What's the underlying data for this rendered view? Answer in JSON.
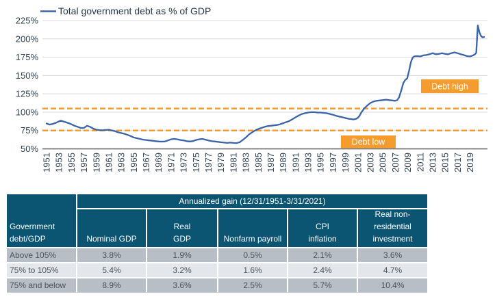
{
  "chart_data": {
    "type": "line",
    "legend": "Total government debt as % of GDP",
    "legend_position": "top-left",
    "grid": true,
    "colors": {
      "line": "#3A63A8",
      "accent_orange": "#F59C2E",
      "axis_text": "#2E4050",
      "gridline": "#D9D9D9",
      "axis_line": "#767676",
      "legend_text": "#253746"
    },
    "y_axis": {
      "unit": "%",
      "range": [
        50,
        225
      ],
      "tick_values": [
        225,
        200,
        175,
        150,
        125,
        100,
        75,
        50
      ],
      "tick_labels": [
        "225%",
        "200%",
        "175%",
        "150%",
        "125%",
        "100%",
        "75%",
        "50%"
      ]
    },
    "x_axis": {
      "range": [
        1951,
        2021.25
      ],
      "tick_labels": [
        "1951",
        "1953",
        "1955",
        "1957",
        "1959",
        "1961",
        "1963",
        "1965",
        "1967",
        "1969",
        "1971",
        "1973",
        "1975",
        "1977",
        "1979",
        "1981",
        "1983",
        "1985",
        "1987",
        "1989",
        "1991",
        "1993",
        "1995",
        "1997",
        "1999",
        "2001",
        "2003",
        "2005",
        "2007",
        "2009",
        "2011",
        "2013",
        "2015",
        "2017",
        "2019"
      ]
    },
    "reference_lines": [
      {
        "label": "Debt high",
        "value": 105,
        "color": "#F59C2E",
        "style": "dashed"
      },
      {
        "label": "Debt low",
        "value": 75,
        "color": "#F59C2E",
        "style": "dashed"
      }
    ],
    "series": [
      {
        "name": "Total government debt as % of GDP",
        "color": "#3A63A8",
        "points": [
          [
            1951,
            84.5
          ],
          [
            1951.5,
            83
          ],
          [
            1952,
            84
          ],
          [
            1952.5,
            85.5
          ],
          [
            1953,
            87.5
          ],
          [
            1953.3,
            88.5
          ],
          [
            1954,
            86.5
          ],
          [
            1954.7,
            84.5
          ],
          [
            1955.5,
            81.5
          ],
          [
            1956.5,
            78.5
          ],
          [
            1957,
            78.5
          ],
          [
            1957.5,
            81.5
          ],
          [
            1958,
            80
          ],
          [
            1958.5,
            77.5
          ],
          [
            1959,
            76
          ],
          [
            1959.5,
            75.5
          ],
          [
            1960,
            75.3
          ],
          [
            1960.5,
            75.8
          ],
          [
            1961,
            76
          ],
          [
            1961.5,
            75
          ],
          [
            1962,
            74
          ],
          [
            1962.5,
            72.5
          ],
          [
            1963,
            71.5
          ],
          [
            1963.5,
            70.5
          ],
          [
            1964,
            69
          ],
          [
            1964.5,
            67.5
          ],
          [
            1965,
            65.5
          ],
          [
            1965.5,
            64.5
          ],
          [
            1966,
            63.5
          ],
          [
            1966.5,
            62.5
          ],
          [
            1967,
            62
          ],
          [
            1967.5,
            61.5
          ],
          [
            1968,
            61
          ],
          [
            1968.5,
            60.5
          ],
          [
            1969,
            60
          ],
          [
            1969.5,
            59.8
          ],
          [
            1970,
            60
          ],
          [
            1970.5,
            61.5
          ],
          [
            1971,
            63
          ],
          [
            1971.5,
            63.5
          ],
          [
            1972,
            63
          ],
          [
            1972.5,
            62
          ],
          [
            1973,
            61.5
          ],
          [
            1973.5,
            60.5
          ],
          [
            1974,
            60
          ],
          [
            1974.5,
            60.5
          ],
          [
            1975,
            62
          ],
          [
            1975.5,
            63
          ],
          [
            1976,
            63.5
          ],
          [
            1976.5,
            62.5
          ],
          [
            1977,
            61.5
          ],
          [
            1977.5,
            60.5
          ],
          [
            1978,
            60
          ],
          [
            1978.5,
            59.5
          ],
          [
            1979,
            59
          ],
          [
            1979.5,
            58.5
          ],
          [
            1980,
            58
          ],
          [
            1980.5,
            58.5
          ],
          [
            1981,
            58
          ],
          [
            1981.5,
            57.8
          ],
          [
            1982,
            59
          ],
          [
            1982.5,
            62
          ],
          [
            1983,
            65.5
          ],
          [
            1983.5,
            69.5
          ],
          [
            1984,
            72.5
          ],
          [
            1984.5,
            75
          ],
          [
            1985,
            77
          ],
          [
            1985.5,
            78.5
          ],
          [
            1986,
            80
          ],
          [
            1986.5,
            81
          ],
          [
            1987,
            81.5
          ],
          [
            1987.5,
            82
          ],
          [
            1988,
            82.5
          ],
          [
            1988.5,
            83.5
          ],
          [
            1989,
            85
          ],
          [
            1989.5,
            86.5
          ],
          [
            1990,
            88
          ],
          [
            1990.5,
            90.5
          ],
          [
            1991,
            93
          ],
          [
            1991.5,
            95.5
          ],
          [
            1992,
            97.5
          ],
          [
            1992.5,
            98.5
          ],
          [
            1993,
            99.5
          ],
          [
            1993.5,
            100
          ],
          [
            1994,
            100
          ],
          [
            1994.5,
            99.5
          ],
          [
            1995,
            99.5
          ],
          [
            1995.5,
            99
          ],
          [
            1996,
            98.5
          ],
          [
            1996.5,
            97.5
          ],
          [
            1997,
            96.5
          ],
          [
            1997.5,
            95
          ],
          [
            1998,
            94
          ],
          [
            1998.5,
            93
          ],
          [
            1999,
            92
          ],
          [
            1999.5,
            91
          ],
          [
            2000,
            90.5
          ],
          [
            2000.25,
            90
          ],
          [
            2000.75,
            91
          ],
          [
            2001,
            92.5
          ],
          [
            2001.25,
            95
          ],
          [
            2001.5,
            99
          ],
          [
            2001.75,
            102
          ],
          [
            2002,
            105
          ],
          [
            2002.5,
            109
          ],
          [
            2003,
            112.5
          ],
          [
            2003.5,
            114.5
          ],
          [
            2004,
            115.5
          ],
          [
            2004.5,
            116
          ],
          [
            2005,
            116.5
          ],
          [
            2005.5,
            117
          ],
          [
            2006,
            116.5
          ],
          [
            2006.5,
            116
          ],
          [
            2007,
            115.5
          ],
          [
            2007.3,
            116.5
          ],
          [
            2007.6,
            120
          ],
          [
            2008,
            131
          ],
          [
            2008.3,
            140
          ],
          [
            2008.6,
            144
          ],
          [
            2008.9,
            146
          ],
          [
            2009.2,
            156
          ],
          [
            2009.5,
            168
          ],
          [
            2009.8,
            174.5
          ],
          [
            2010,
            176
          ],
          [
            2010.5,
            176.5
          ],
          [
            2011,
            176
          ],
          [
            2011.5,
            177.5
          ],
          [
            2012,
            178
          ],
          [
            2012.5,
            179
          ],
          [
            2013,
            180.5
          ],
          [
            2013.5,
            179
          ],
          [
            2014,
            179.5
          ],
          [
            2014.5,
            180.5
          ],
          [
            2015,
            179.5
          ],
          [
            2015.5,
            179
          ],
          [
            2016,
            180.5
          ],
          [
            2016.5,
            181.5
          ],
          [
            2017,
            180.5
          ],
          [
            2017.5,
            179
          ],
          [
            2018,
            178
          ],
          [
            2018.5,
            176.5
          ],
          [
            2019,
            176
          ],
          [
            2019.5,
            177.5
          ],
          [
            2019.8,
            179
          ],
          [
            2020,
            181
          ],
          [
            2020.25,
            218.5
          ],
          [
            2020.5,
            209
          ],
          [
            2020.75,
            204
          ],
          [
            2021,
            202
          ],
          [
            2021.25,
            202.5
          ]
        ]
      }
    ]
  },
  "table": {
    "span_header": "Annualized gain (12/31/1951-3/31/2021)",
    "corner_header": "Government\ndebt/GDP",
    "columns": [
      "Nominal GDP",
      "Real\nGDP",
      "Nonfarm payroll",
      "CPI\ninflation",
      "Real non-\nresidential\ninvestment"
    ],
    "rows": [
      {
        "label": "Above 105%",
        "values": [
          "3.8%",
          "1.9%",
          "0.5%",
          "2.1%",
          "3.6%"
        ]
      },
      {
        "label": "75% to 105%",
        "values": [
          "5.4%",
          "3.2%",
          "1.6%",
          "2.4%",
          "4.7%"
        ]
      },
      {
        "label": "75% and below",
        "values": [
          "8.9%",
          "3.6%",
          "2.5%",
          "5.7%",
          "10.4%"
        ]
      }
    ],
    "colors": {
      "header_bg": "#0B5572",
      "header_text": "#FFFFFF",
      "row_dark": "#B7BEC6",
      "row_light": "#E3E6EA",
      "body_text": "#49525B"
    }
  }
}
